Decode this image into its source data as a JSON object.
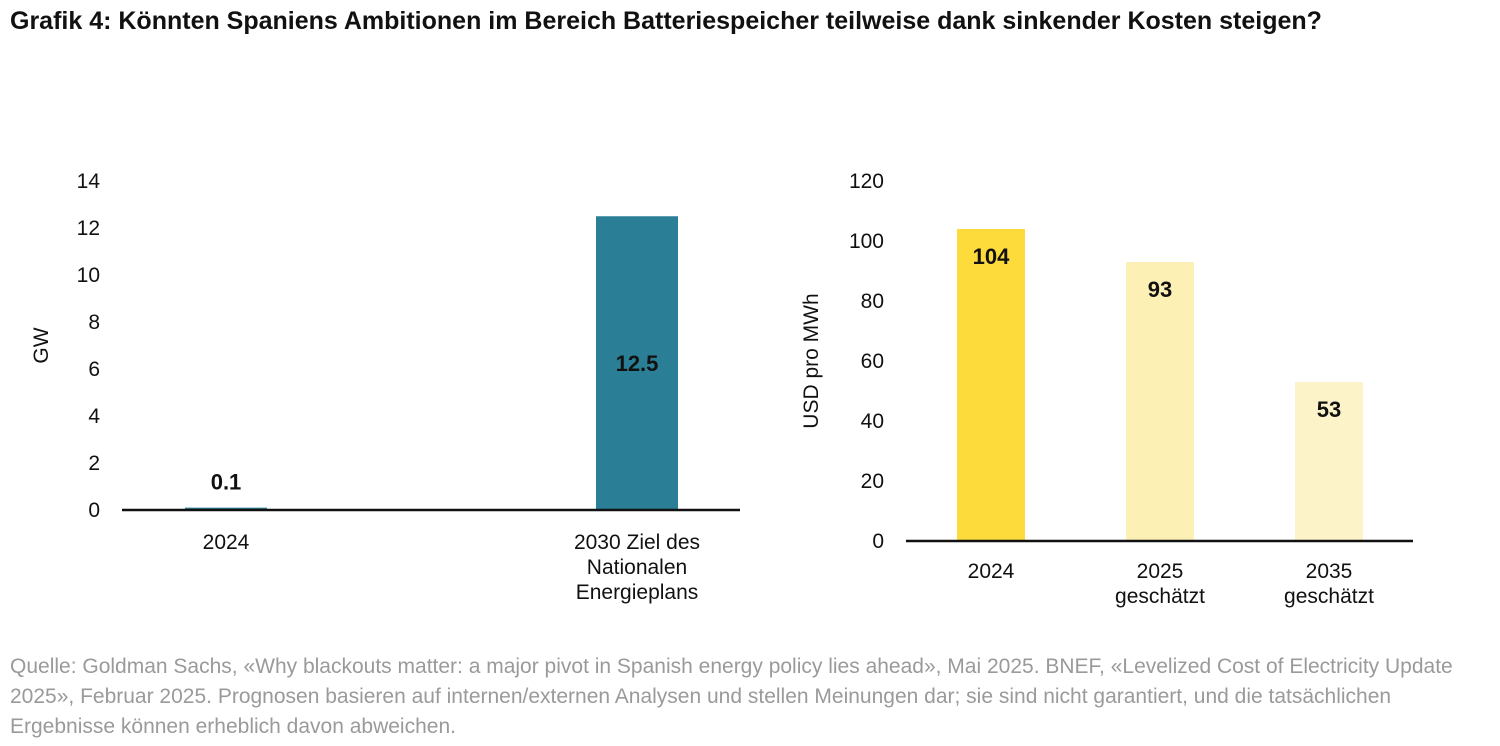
{
  "title": "Grafik 4: Könnten Spaniens Ambitionen im Bereich Batteriespeicher teilweise dank sinkender Kosten steigen?",
  "source": "Quelle: Goldman Sachs, «Why blackouts matter: a major pivot in Spanish energy policy lies ahead», Mai 2025. BNEF, «Levelized Cost of Electricity Update 2025», Februar 2025. Prognosen basieren auf internen/externen Analysen und stellen Meinungen dar; sie sind nicht garantiert, und die tatsächlichen Ergebnisse können erheblich davon abweichen.",
  "chart_data": [
    {
      "type": "bar",
      "y_label": "GW",
      "categories": [
        "2024",
        "2030 Ziel des\nNationalen\nEnergieplans"
      ],
      "values": [
        0.1,
        12.5
      ],
      "colors": [
        "#2a7f96",
        "#2a7f96"
      ],
      "ylim": [
        0,
        14
      ],
      "yticks": [
        0,
        2,
        4,
        6,
        8,
        10,
        12,
        14
      ],
      "grid": false
    },
    {
      "type": "bar",
      "y_label": "USD pro MWh",
      "categories": [
        "2024",
        "2025\ngeschätzt",
        "2035\ngeschätzt"
      ],
      "values": [
        104,
        93,
        53
      ],
      "colors": [
        "#fddb3a",
        "#fdf0b5",
        "#fdf3c8"
      ],
      "ylim": [
        0,
        120
      ],
      "yticks": [
        0,
        20,
        40,
        60,
        80,
        100,
        120
      ],
      "grid": false
    }
  ]
}
